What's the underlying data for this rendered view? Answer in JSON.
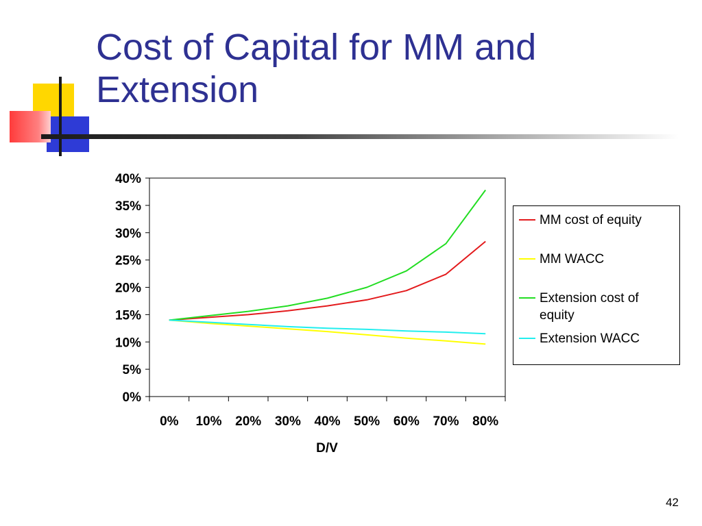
{
  "slide": {
    "title": "Cost of Capital for MM and Extension",
    "page_number": "42",
    "accent_colors": {
      "title": "#2e3192",
      "deco_yellow": "#ffd700",
      "deco_red": "#ff3b3b",
      "deco_blue": "#2e3bd6"
    }
  },
  "chart_data": {
    "type": "line",
    "title": "",
    "xlabel": "D/V",
    "ylabel": "",
    "categories": [
      "0%",
      "10%",
      "20%",
      "30%",
      "40%",
      "50%",
      "60%",
      "70%",
      "80%"
    ],
    "x": [
      0,
      10,
      20,
      30,
      40,
      50,
      60,
      70,
      80
    ],
    "ylim": [
      0,
      40
    ],
    "yticks": [
      "0%",
      "5%",
      "10%",
      "15%",
      "20%",
      "25%",
      "30%",
      "35%",
      "40%"
    ],
    "grid": false,
    "legend_position": "right",
    "series": [
      {
        "name": "MM cost of equity",
        "color": "#e31a1c",
        "values": [
          14.0,
          14.5,
          15.0,
          15.7,
          16.6,
          17.7,
          19.4,
          22.4,
          28.4
        ]
      },
      {
        "name": "MM WACC",
        "color": "#ffff00",
        "values": [
          14.0,
          13.4,
          12.9,
          12.4,
          11.9,
          11.3,
          10.7,
          10.2,
          9.6
        ]
      },
      {
        "name": "Extension cost of equity",
        "color": "#22dd22",
        "values": [
          14.0,
          14.8,
          15.6,
          16.6,
          18.0,
          20.0,
          23.0,
          28.0,
          37.8
        ]
      },
      {
        "name": "Extension WACC",
        "color": "#22eeee",
        "values": [
          14.0,
          13.6,
          13.2,
          12.8,
          12.5,
          12.3,
          12.0,
          11.8,
          11.5
        ]
      }
    ]
  }
}
